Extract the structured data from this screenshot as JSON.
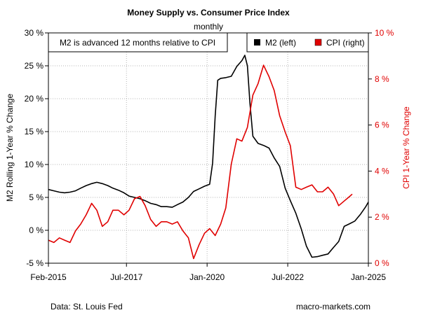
{
  "chart_data": {
    "type": "line",
    "title": "Money Supply vs. Consumer Price Index",
    "subtitle": "monthly",
    "annotation": "M2 is advanced 12 months relative to CPI",
    "ylabel_left": "M2 Rolling 1-Year % Change",
    "ylabel_right": "CPI 1-Year % Change",
    "ylim_left": [
      -5,
      30
    ],
    "ylim_right": [
      0,
      10
    ],
    "yticks_left": [
      -5,
      0,
      5,
      10,
      15,
      20,
      25,
      30
    ],
    "yticks_right": [
      0,
      2,
      4,
      6,
      8,
      10
    ],
    "x_range": [
      2015.08,
      2025.0
    ],
    "x_ticks": [
      {
        "value": 2015.08,
        "label": "Feb-2015"
      },
      {
        "value": 2017.5,
        "label": "Jul-2017"
      },
      {
        "value": 2020.0,
        "label": "Jan-2020"
      },
      {
        "value": 2022.5,
        "label": "Jul-2022"
      },
      {
        "value": 2025.0,
        "label": "Jan-2025"
      }
    ],
    "grid": true,
    "legend_position": "top-right",
    "series": [
      {
        "name": "M2 (left)",
        "axis": "left",
        "color": "#000000",
        "points": [
          [
            2015.08,
            6.2
          ],
          [
            2015.25,
            6.0
          ],
          [
            2015.42,
            5.8
          ],
          [
            2015.58,
            5.7
          ],
          [
            2015.75,
            5.8
          ],
          [
            2015.92,
            6.0
          ],
          [
            2016.08,
            6.4
          ],
          [
            2016.25,
            6.8
          ],
          [
            2016.42,
            7.1
          ],
          [
            2016.58,
            7.3
          ],
          [
            2016.75,
            7.1
          ],
          [
            2016.92,
            6.8
          ],
          [
            2017.08,
            6.4
          ],
          [
            2017.25,
            6.1
          ],
          [
            2017.42,
            5.7
          ],
          [
            2017.58,
            5.2
          ],
          [
            2017.75,
            5.0
          ],
          [
            2017.92,
            4.8
          ],
          [
            2018.08,
            4.5
          ],
          [
            2018.25,
            4.1
          ],
          [
            2018.42,
            3.9
          ],
          [
            2018.58,
            3.6
          ],
          [
            2018.75,
            3.6
          ],
          [
            2018.92,
            3.5
          ],
          [
            2019.08,
            3.9
          ],
          [
            2019.25,
            4.3
          ],
          [
            2019.42,
            5.0
          ],
          [
            2019.58,
            5.9
          ],
          [
            2019.75,
            6.3
          ],
          [
            2019.92,
            6.7
          ],
          [
            2020.08,
            7.0
          ],
          [
            2020.17,
            10.2
          ],
          [
            2020.25,
            17.4
          ],
          [
            2020.33,
            22.8
          ],
          [
            2020.42,
            23.1
          ],
          [
            2020.58,
            23.2
          ],
          [
            2020.75,
            23.4
          ],
          [
            2020.92,
            24.9
          ],
          [
            2021.08,
            25.8
          ],
          [
            2021.17,
            26.6
          ],
          [
            2021.25,
            25.0
          ],
          [
            2021.33,
            19.2
          ],
          [
            2021.42,
            14.3
          ],
          [
            2021.58,
            13.2
          ],
          [
            2021.75,
            12.9
          ],
          [
            2021.92,
            12.5
          ],
          [
            2022.08,
            11.0
          ],
          [
            2022.25,
            9.7
          ],
          [
            2022.42,
            6.4
          ],
          [
            2022.58,
            4.5
          ],
          [
            2022.75,
            2.6
          ],
          [
            2022.92,
            0.2
          ],
          [
            2023.08,
            -2.4
          ],
          [
            2023.25,
            -4.1
          ],
          [
            2023.42,
            -4.0
          ],
          [
            2023.58,
            -3.8
          ],
          [
            2023.75,
            -3.6
          ],
          [
            2023.92,
            -2.6
          ],
          [
            2024.08,
            -1.7
          ],
          [
            2024.25,
            0.6
          ],
          [
            2024.42,
            1.0
          ],
          [
            2024.58,
            1.4
          ],
          [
            2024.75,
            2.4
          ],
          [
            2024.92,
            3.6
          ],
          [
            2025.0,
            4.3
          ]
        ]
      },
      {
        "name": "CPI (right)",
        "axis": "right",
        "color": "#e00000",
        "points": [
          [
            2015.08,
            1.0
          ],
          [
            2015.25,
            0.9
          ],
          [
            2015.42,
            1.1
          ],
          [
            2015.58,
            1.0
          ],
          [
            2015.75,
            0.9
          ],
          [
            2015.92,
            1.4
          ],
          [
            2016.08,
            1.7
          ],
          [
            2016.25,
            2.1
          ],
          [
            2016.42,
            2.6
          ],
          [
            2016.58,
            2.3
          ],
          [
            2016.75,
            1.6
          ],
          [
            2016.92,
            1.8
          ],
          [
            2017.08,
            2.3
          ],
          [
            2017.25,
            2.3
          ],
          [
            2017.42,
            2.1
          ],
          [
            2017.58,
            2.3
          ],
          [
            2017.75,
            2.8
          ],
          [
            2017.92,
            2.9
          ],
          [
            2018.08,
            2.5
          ],
          [
            2018.25,
            1.9
          ],
          [
            2018.42,
            1.6
          ],
          [
            2018.58,
            1.8
          ],
          [
            2018.75,
            1.8
          ],
          [
            2018.92,
            1.7
          ],
          [
            2019.08,
            1.8
          ],
          [
            2019.25,
            1.4
          ],
          [
            2019.42,
            1.1
          ],
          [
            2019.58,
            0.2
          ],
          [
            2019.75,
            0.8
          ],
          [
            2019.92,
            1.3
          ],
          [
            2020.08,
            1.5
          ],
          [
            2020.25,
            1.2
          ],
          [
            2020.42,
            1.7
          ],
          [
            2020.58,
            2.4
          ],
          [
            2020.75,
            4.3
          ],
          [
            2020.92,
            5.4
          ],
          [
            2021.08,
            5.3
          ],
          [
            2021.25,
            5.9
          ],
          [
            2021.42,
            7.3
          ],
          [
            2021.58,
            7.8
          ],
          [
            2021.75,
            8.6
          ],
          [
            2021.92,
            8.1
          ],
          [
            2022.08,
            7.5
          ],
          [
            2022.25,
            6.4
          ],
          [
            2022.42,
            5.7
          ],
          [
            2022.58,
            5.1
          ],
          [
            2022.75,
            3.3
          ],
          [
            2022.92,
            3.2
          ],
          [
            2023.08,
            3.3
          ],
          [
            2023.25,
            3.4
          ],
          [
            2023.42,
            3.1
          ],
          [
            2023.58,
            3.1
          ],
          [
            2023.75,
            3.3
          ],
          [
            2023.92,
            3.0
          ],
          [
            2024.08,
            2.5
          ],
          [
            2024.25,
            2.7
          ],
          [
            2024.42,
            2.9
          ],
          [
            2024.5,
            3.0
          ]
        ]
      }
    ]
  },
  "footer": {
    "source": "Data: St. Louis Fed",
    "site": "macro-markets.com"
  }
}
